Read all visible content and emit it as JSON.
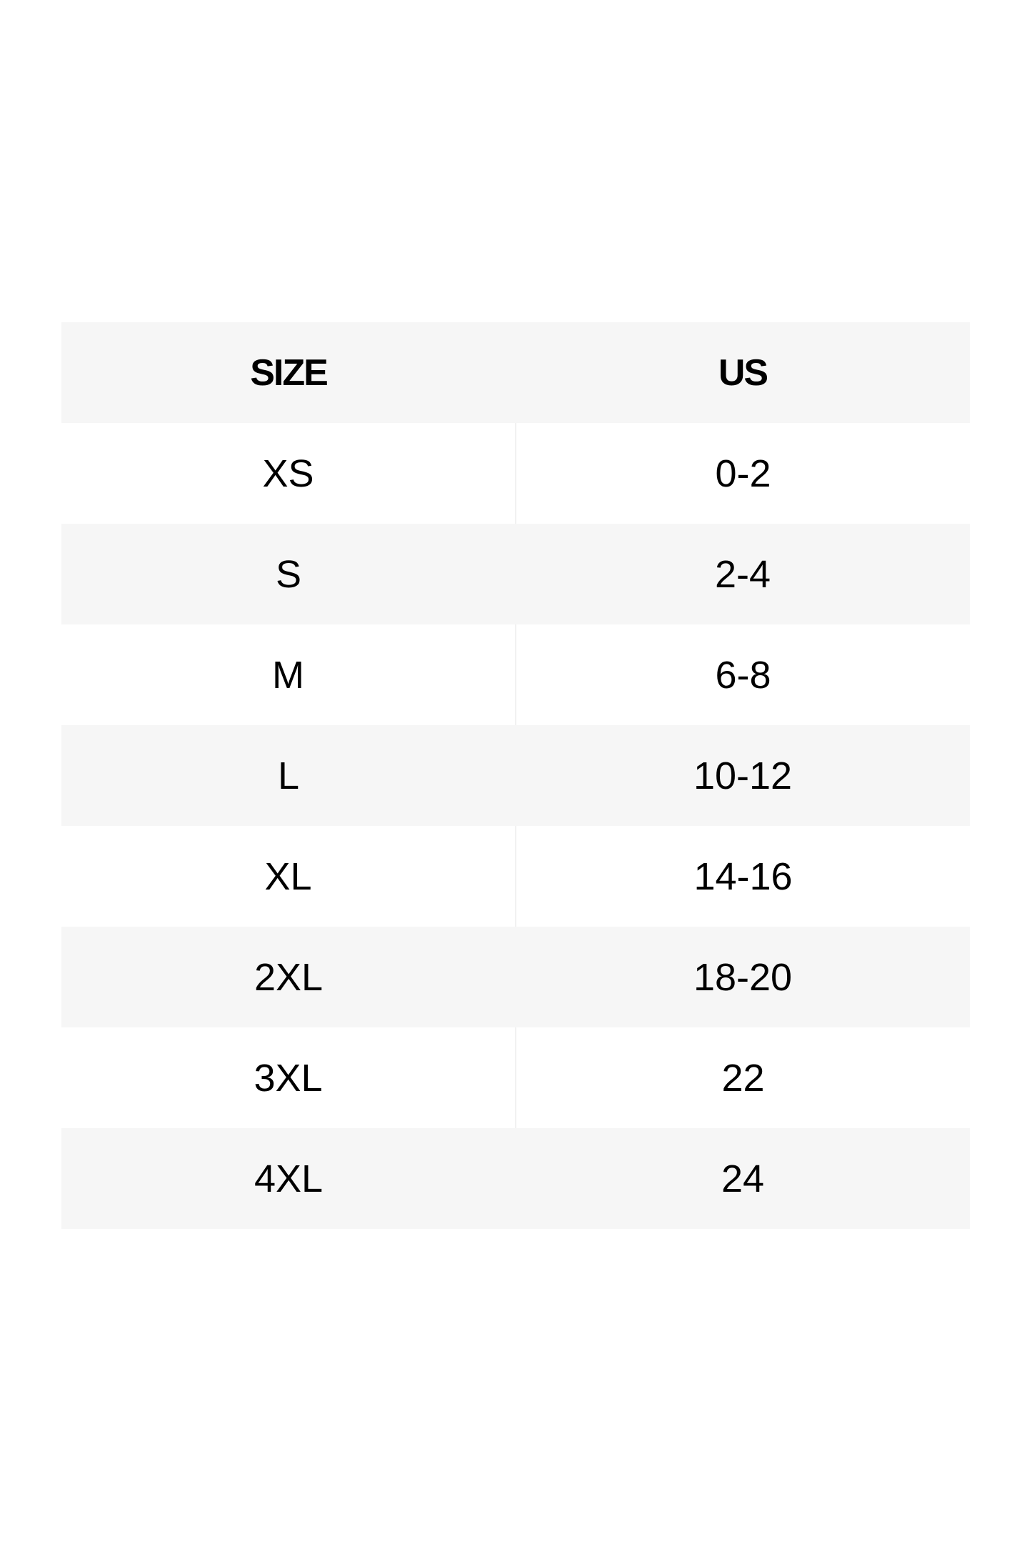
{
  "table": {
    "headers": [
      "SIZE",
      "US"
    ],
    "rows": [
      [
        "XS",
        "0-2"
      ],
      [
        "S",
        "2-4"
      ],
      [
        "M",
        "6-8"
      ],
      [
        "L",
        "10-12"
      ],
      [
        "XL",
        "14-16"
      ],
      [
        "2XL",
        "18-20"
      ],
      [
        "3XL",
        "22"
      ],
      [
        "4XL",
        "24"
      ]
    ]
  },
  "colors": {
    "shaded_row": "#f6f6f6",
    "text": "#000000"
  }
}
